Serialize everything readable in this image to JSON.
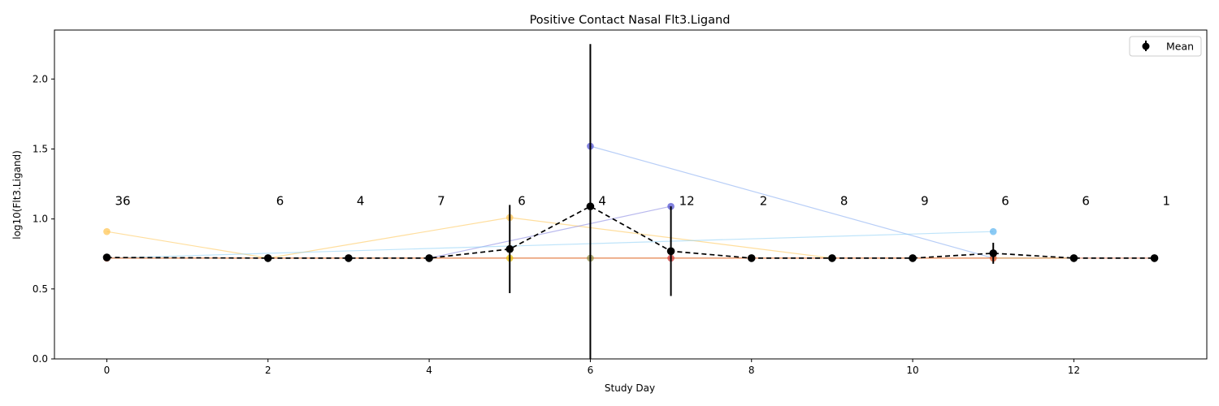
{
  "chart_data": {
    "type": "line",
    "title": "Positive Contact Nasal Flt3.Ligand",
    "xlabel": "Study Day",
    "ylabel": "log10(Flt3.Ligand)",
    "xlim": [
      -0.65,
      13.65
    ],
    "ylim": [
      0,
      2.35
    ],
    "xticks": [
      0,
      2,
      4,
      6,
      8,
      10,
      12
    ],
    "yticks": [
      0.0,
      0.5,
      1.0,
      1.5,
      2.0
    ],
    "xtick_labels": [
      "0",
      "2",
      "4",
      "6",
      "8",
      "10",
      "12"
    ],
    "ytick_labels": [
      "0.0",
      "0.5",
      "1.0",
      "1.5",
      "2.0"
    ],
    "legend": {
      "position": "top-right",
      "label": "Mean"
    },
    "individual_series": [
      {
        "color": "#ffc34d",
        "x": [
          0,
          2,
          5,
          9
        ],
        "y": [
          0.91,
          0.72,
          1.01,
          0.72
        ]
      },
      {
        "color": "#7ea6f0",
        "x": [
          6,
          11
        ],
        "y": [
          1.52,
          0.72
        ]
      },
      {
        "color": "#7f7fe0",
        "x": [
          4,
          7
        ],
        "y": [
          0.72,
          1.09
        ]
      },
      {
        "color": "#89cdf5",
        "x": [
          0,
          11
        ],
        "y": [
          0.72,
          0.91
        ]
      },
      {
        "color": "#b5e05a",
        "x": [
          11,
          12
        ],
        "y": [
          0.72,
          0.72
        ]
      },
      {
        "color": "#e8a33a",
        "x": [
          0,
          4,
          10,
          11
        ],
        "y": [
          0.72,
          0.72,
          0.72,
          0.72
        ]
      },
      {
        "color": "#d94a1e",
        "x": [
          0,
          13
        ],
        "y": [
          0.72,
          0.72
        ]
      }
    ],
    "individual_points": [
      {
        "x": 0,
        "y": 0.91,
        "color": "#ffc34d"
      },
      {
        "x": 5,
        "y": 1.01,
        "color": "#ffc34d"
      },
      {
        "x": 5,
        "y": 0.72,
        "color": "#e8c000"
      },
      {
        "x": 6,
        "y": 1.52,
        "color": "#4a4ad0"
      },
      {
        "x": 6,
        "y": 0.72,
        "color": "#8a8a40"
      },
      {
        "x": 7,
        "y": 1.09,
        "color": "#4a4ad0"
      },
      {
        "x": 7,
        "y": 0.72,
        "color": "#d03030"
      },
      {
        "x": 11,
        "y": 0.91,
        "color": "#5ab4f0"
      },
      {
        "x": 11,
        "y": 0.72,
        "color": "#d94a1e"
      },
      {
        "x": 0,
        "y": 0.72,
        "color": "#d94a1e"
      }
    ],
    "mean_series": {
      "name": "Mean",
      "x": [
        0,
        2,
        3,
        4,
        5,
        6,
        7,
        8,
        9,
        10,
        11,
        12,
        13
      ],
      "y": [
        0.725,
        0.72,
        0.72,
        0.72,
        0.785,
        1.09,
        0.77,
        0.72,
        0.72,
        0.72,
        0.755,
        0.72,
        0.72
      ],
      "err": [
        0,
        0,
        0,
        0,
        0.315,
        1.16,
        0.32,
        0,
        0,
        0,
        0.075,
        0,
        0
      ]
    },
    "counts": {
      "x": [
        0,
        2,
        3,
        4,
        5,
        6,
        7,
        8,
        9,
        10,
        11,
        12,
        13
      ],
      "labels": [
        "36",
        "6",
        "4",
        "7",
        "6",
        "4",
        "12",
        "2",
        "8",
        "9",
        "6",
        "6",
        "1"
      ],
      "y": 1.13
    }
  }
}
